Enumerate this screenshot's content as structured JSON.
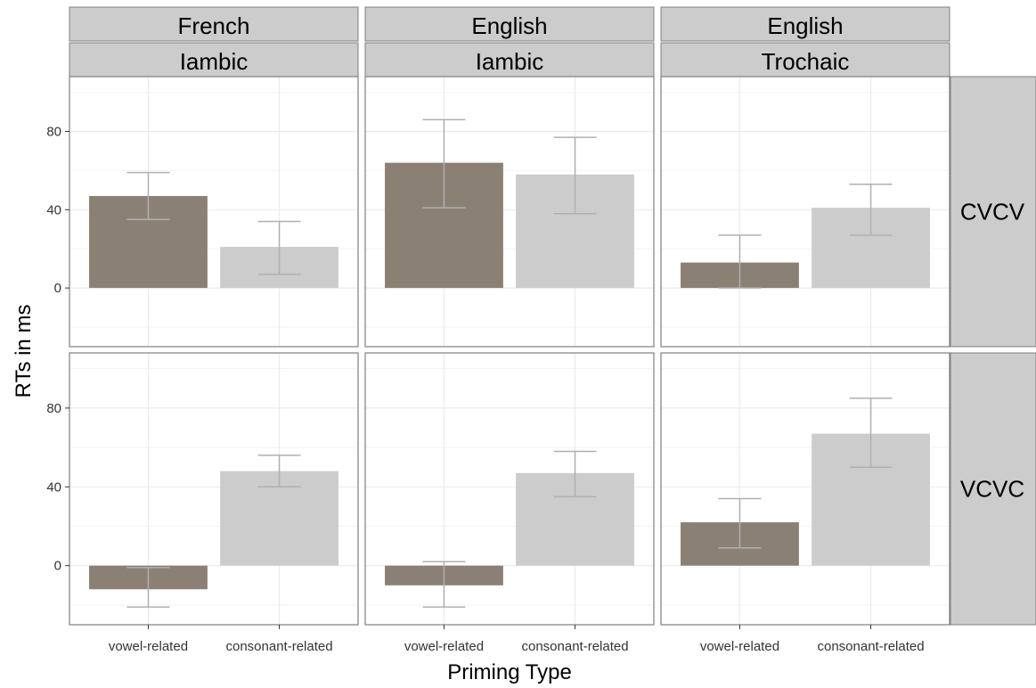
{
  "chart_data": {
    "type": "bar",
    "xlabel": "Priming Type",
    "ylabel": "RTs in ms",
    "categories": [
      "vowel-related",
      "consonant-related"
    ],
    "yticks": [
      0,
      40,
      80
    ],
    "ylim": [
      -30,
      108
    ],
    "colors": {
      "vowel-related": "#8b8074",
      "consonant-related": "#cccccc",
      "errorbar": "#b0b0b0",
      "strip": "#cccccc",
      "grid": "#ebebeb"
    },
    "grid": true,
    "column_facets": [
      {
        "top": "French",
        "bottom": "Iambic"
      },
      {
        "top": "English",
        "bottom": "Iambic"
      },
      {
        "top": "English",
        "bottom": "Trochaic"
      }
    ],
    "row_facets": [
      "CVCV",
      "VCVC"
    ],
    "panels": [
      {
        "row": 0,
        "col": 0,
        "values": [
          47,
          21
        ],
        "errors": [
          [
            35,
            59
          ],
          [
            7,
            34
          ]
        ]
      },
      {
        "row": 0,
        "col": 1,
        "values": [
          64,
          58
        ],
        "errors": [
          [
            41,
            86
          ],
          [
            38,
            77
          ]
        ]
      },
      {
        "row": 0,
        "col": 2,
        "values": [
          13,
          41
        ],
        "errors": [
          [
            0,
            27
          ],
          [
            27,
            53
          ]
        ]
      },
      {
        "row": 1,
        "col": 0,
        "values": [
          -12,
          48
        ],
        "errors": [
          [
            -21,
            -1
          ],
          [
            40,
            56
          ]
        ]
      },
      {
        "row": 1,
        "col": 1,
        "values": [
          -10,
          47
        ],
        "errors": [
          [
            -21,
            2
          ],
          [
            35,
            58
          ]
        ]
      },
      {
        "row": 1,
        "col": 2,
        "values": [
          22,
          67
        ],
        "errors": [
          [
            9,
            34
          ],
          [
            50,
            85
          ]
        ]
      }
    ]
  }
}
